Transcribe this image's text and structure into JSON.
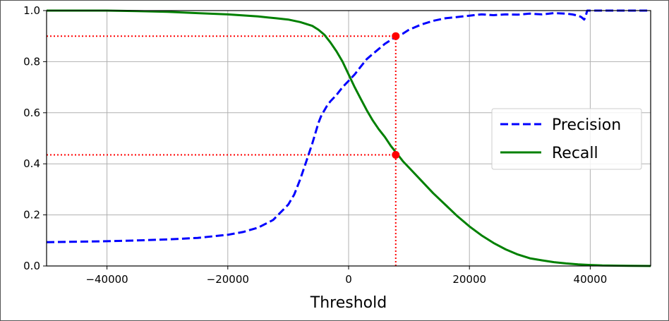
{
  "chart_data": {
    "type": "line",
    "title": "",
    "xlabel": "Threshold",
    "ylabel": "",
    "xlim": [
      -50000,
      50000
    ],
    "ylim": [
      0.0,
      1.0
    ],
    "xticks": [
      -40000,
      -20000,
      0,
      20000,
      40000
    ],
    "xtick_labels": [
      "−40000",
      "−20000",
      "0",
      "20000",
      "40000"
    ],
    "yticks": [
      0.0,
      0.2,
      0.4,
      0.6,
      0.8,
      1.0
    ],
    "ytick_labels": [
      "0.0",
      "0.2",
      "0.4",
      "0.6",
      "0.8",
      "1.0"
    ],
    "grid": true,
    "legend_position": "center-right",
    "series": [
      {
        "name": "Precision",
        "style": "dashed",
        "color": "#0000ff",
        "x": [
          -50000,
          -45000,
          -40000,
          -35000,
          -30000,
          -25000,
          -20000,
          -17500,
          -15000,
          -12500,
          -10000,
          -9000,
          -8000,
          -7000,
          -6000,
          -5500,
          -5000,
          -4500,
          -4000,
          -3500,
          -3000,
          -2000,
          -1000,
          0,
          1000,
          2000,
          3000,
          4000,
          5000,
          6000,
          7000,
          8000,
          9000,
          10000,
          12000,
          14000,
          16000,
          18000,
          20000,
          22000,
          24000,
          26000,
          28000,
          30000,
          32000,
          34000,
          36000,
          37000,
          38000,
          38500,
          39000,
          39200,
          39500,
          40000,
          42000,
          45000,
          50000
        ],
        "y": [
          0.093,
          0.095,
          0.097,
          0.1,
          0.104,
          0.11,
          0.122,
          0.133,
          0.15,
          0.18,
          0.24,
          0.28,
          0.34,
          0.41,
          0.48,
          0.52,
          0.56,
          0.59,
          0.61,
          0.63,
          0.645,
          0.67,
          0.7,
          0.725,
          0.75,
          0.78,
          0.81,
          0.83,
          0.85,
          0.87,
          0.885,
          0.9,
          0.91,
          0.925,
          0.945,
          0.96,
          0.97,
          0.975,
          0.98,
          0.985,
          0.982,
          0.985,
          0.984,
          0.988,
          0.985,
          0.99,
          0.988,
          0.985,
          0.98,
          0.975,
          0.965,
          0.975,
          1.0,
          1.0,
          1.0,
          1.0,
          1.0
        ]
      },
      {
        "name": "Recall",
        "style": "solid",
        "color": "#008000",
        "x": [
          -50000,
          -45000,
          -40000,
          -35000,
          -30000,
          -25000,
          -20000,
          -15000,
          -12000,
          -10000,
          -8000,
          -6000,
          -5000,
          -4000,
          -3000,
          -2000,
          -1000,
          0,
          1000,
          2000,
          3000,
          4000,
          5000,
          6000,
          7000,
          8000,
          9000,
          10000,
          12000,
          14000,
          16000,
          18000,
          20000,
          22000,
          24000,
          26000,
          28000,
          30000,
          32000,
          34000,
          36000,
          38000,
          40000,
          42000,
          45000,
          50000
        ],
        "y": [
          1.0,
          1.0,
          1.0,
          0.998,
          0.995,
          0.99,
          0.985,
          0.977,
          0.97,
          0.965,
          0.955,
          0.94,
          0.925,
          0.905,
          0.875,
          0.84,
          0.8,
          0.75,
          0.7,
          0.655,
          0.61,
          0.57,
          0.535,
          0.505,
          0.47,
          0.44,
          0.41,
          0.385,
          0.335,
          0.285,
          0.24,
          0.195,
          0.155,
          0.12,
          0.09,
          0.065,
          0.045,
          0.03,
          0.022,
          0.015,
          0.01,
          0.006,
          0.004,
          0.002,
          0.001,
          0.0
        ]
      }
    ],
    "annotations": [
      {
        "type": "dotted-line",
        "color": "#ff0000",
        "from": [
          -50000,
          0.9
        ],
        "to": [
          7800,
          0.9
        ]
      },
      {
        "type": "dotted-line",
        "color": "#ff0000",
        "from": [
          -50000,
          0.435
        ],
        "to": [
          7800,
          0.435
        ]
      },
      {
        "type": "dotted-line",
        "color": "#ff0000",
        "from": [
          7800,
          0.0
        ],
        "to": [
          7800,
          0.9
        ]
      },
      {
        "type": "point",
        "color": "#ff0000",
        "x": 7800,
        "y": 0.9
      },
      {
        "type": "point",
        "color": "#ff0000",
        "x": 7800,
        "y": 0.435
      }
    ]
  }
}
